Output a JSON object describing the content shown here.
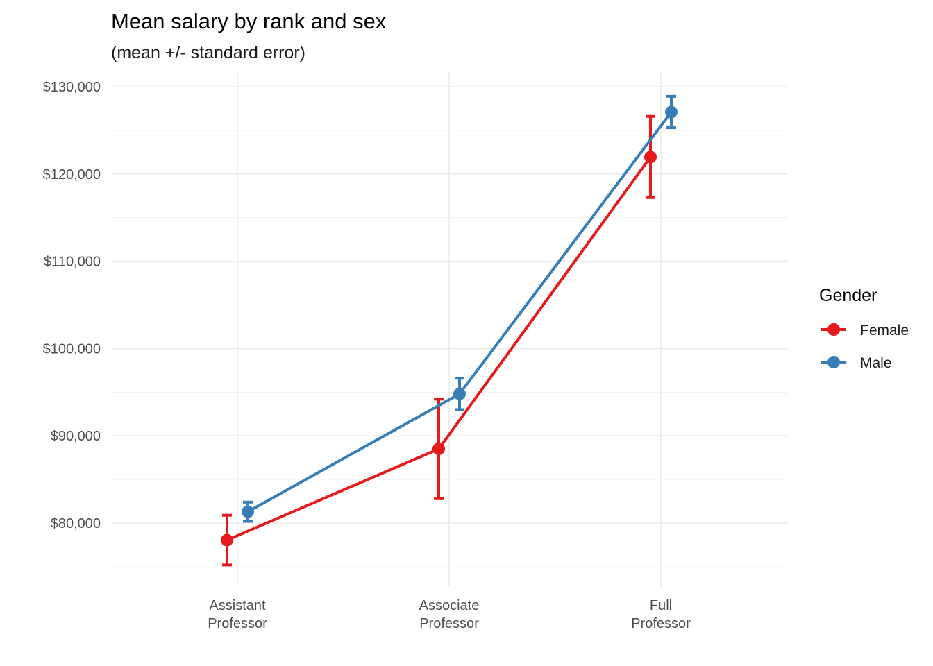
{
  "chart_data": {
    "type": "line",
    "title": "Mean salary by rank and sex",
    "subtitle": "(mean +/- standard error)",
    "xlabel": "",
    "ylabel": "",
    "categories": [
      "Assistant Professor",
      "Associate Professor",
      "Full Professor"
    ],
    "category_tick_lines": [
      [
        "Assistant",
        "Professor"
      ],
      [
        "Associate",
        "Professor"
      ],
      [
        "Full",
        "Professor"
      ]
    ],
    "y_ticks": [
      80000,
      90000,
      100000,
      110000,
      120000,
      130000
    ],
    "y_tick_labels": [
      "$80,000",
      "$90,000",
      "$100,000",
      "$110,000",
      "$120,000",
      "$130,000"
    ],
    "ylim": [
      73000,
      131700
    ],
    "grid": true,
    "legend": {
      "title": "Gender",
      "placement": "right"
    },
    "series": [
      {
        "name": "Female",
        "color": "#e41a1c",
        "values": [
          78050,
          88500,
          121950
        ],
        "se_lower": [
          75200,
          82800,
          117300
        ],
        "se_upper": [
          80900,
          94200,
          126600
        ]
      },
      {
        "name": "Male",
        "color": "#377eb8",
        "values": [
          81300,
          94800,
          127100
        ],
        "se_lower": [
          80200,
          93000,
          125300
        ],
        "se_upper": [
          82400,
          96600,
          128900
        ]
      }
    ]
  }
}
